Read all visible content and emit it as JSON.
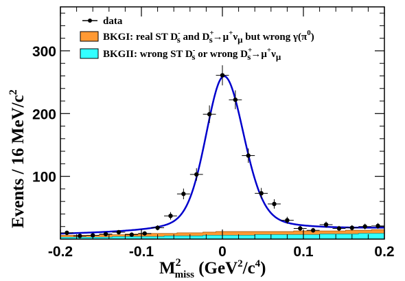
{
  "chart_data": {
    "type": "scatter",
    "title": "",
    "xlim": [
      -0.2,
      0.2
    ],
    "ylim": [
      0,
      370
    ],
    "x_ticks": [
      -0.2,
      -0.1,
      0,
      0.1,
      0.2
    ],
    "y_ticks": [
      100,
      200,
      300
    ],
    "x_tick_labels": [
      "-0.2",
      "-0.1",
      "0",
      "0.1",
      "0.2"
    ],
    "y_tick_labels": [
      "100",
      "200",
      "300"
    ],
    "xlabel": {
      "main": "M",
      "sub": "miss",
      "sup": "2",
      "rest": " (GeV",
      "sup2": "2",
      "rest2": "/c",
      "sup3": "4",
      "end": ")"
    },
    "ylabel": {
      "main": "Events / 16 MeV/c",
      "sup": "2"
    },
    "bin_width": 0.016,
    "grid": false,
    "legend_position": "top-left",
    "legend": {
      "data": "data",
      "bkg1": {
        "a": "BKGI: real ST D",
        "a_sup": "-",
        "a_sub": "s",
        "b": " and D",
        "b_sup": "+",
        "b_sub": "s",
        "c": "→μ",
        "c_sup": "+",
        "d": "ν",
        "d_sub": "μ",
        "e": " but wrong  γ(π",
        "e_sup": "0",
        "f": ")"
      },
      "bkg2": {
        "a": "BKGII: wrong ST D",
        "a_sup": "-",
        "a_sub": "s",
        "b": " or wrong D",
        "b_sup": "+",
        "b_sub": "s",
        "c": "→μ",
        "c_sup": "+",
        "d": "ν",
        "d_sub": "μ"
      }
    },
    "colors": {
      "fit": "#0000cc",
      "bkg1": "#ff9933",
      "bkg2": "#33ffff",
      "data": "#000000"
    },
    "data_points": {
      "x": [
        -0.192,
        -0.176,
        -0.16,
        -0.144,
        -0.128,
        -0.112,
        -0.096,
        -0.08,
        -0.064,
        -0.048,
        -0.032,
        -0.016,
        0.0,
        0.016,
        0.032,
        0.048,
        0.064,
        0.08,
        0.096,
        0.112,
        0.128,
        0.144,
        0.16,
        0.176,
        0.192
      ],
      "y": [
        10,
        5,
        6,
        8,
        11,
        7,
        9,
        18,
        37,
        72,
        103,
        199,
        261,
        222,
        133,
        73,
        56,
        30,
        17,
        14,
        23,
        17,
        18,
        20,
        21
      ],
      "yerr": [
        3,
        2,
        2,
        3,
        3,
        3,
        3,
        4,
        6,
        8.5,
        10,
        14,
        16,
        15,
        11.5,
        8.5,
        7.5,
        5.5,
        4,
        3.7,
        4.8,
        4,
        4.2,
        4.5,
        4.6
      ]
    },
    "fit_curve": {
      "peak": 248,
      "mean": 0.002,
      "sigma_left": 0.022,
      "sigma_right": 0.024,
      "baseline_left": 7,
      "baseline_right": 16
    },
    "bkg1_top": [
      6,
      6,
      6,
      7,
      7,
      8,
      8,
      9,
      9,
      10,
      10,
      11,
      12,
      12,
      12,
      12,
      12,
      12,
      13,
      13,
      13,
      13,
      14,
      14,
      15
    ],
    "bkg2_top": [
      3,
      3,
      3,
      3,
      4,
      4,
      4,
      4,
      5,
      5,
      5,
      6,
      6,
      6,
      6,
      7,
      7,
      7,
      7,
      7,
      8,
      8,
      8,
      9,
      9
    ]
  }
}
